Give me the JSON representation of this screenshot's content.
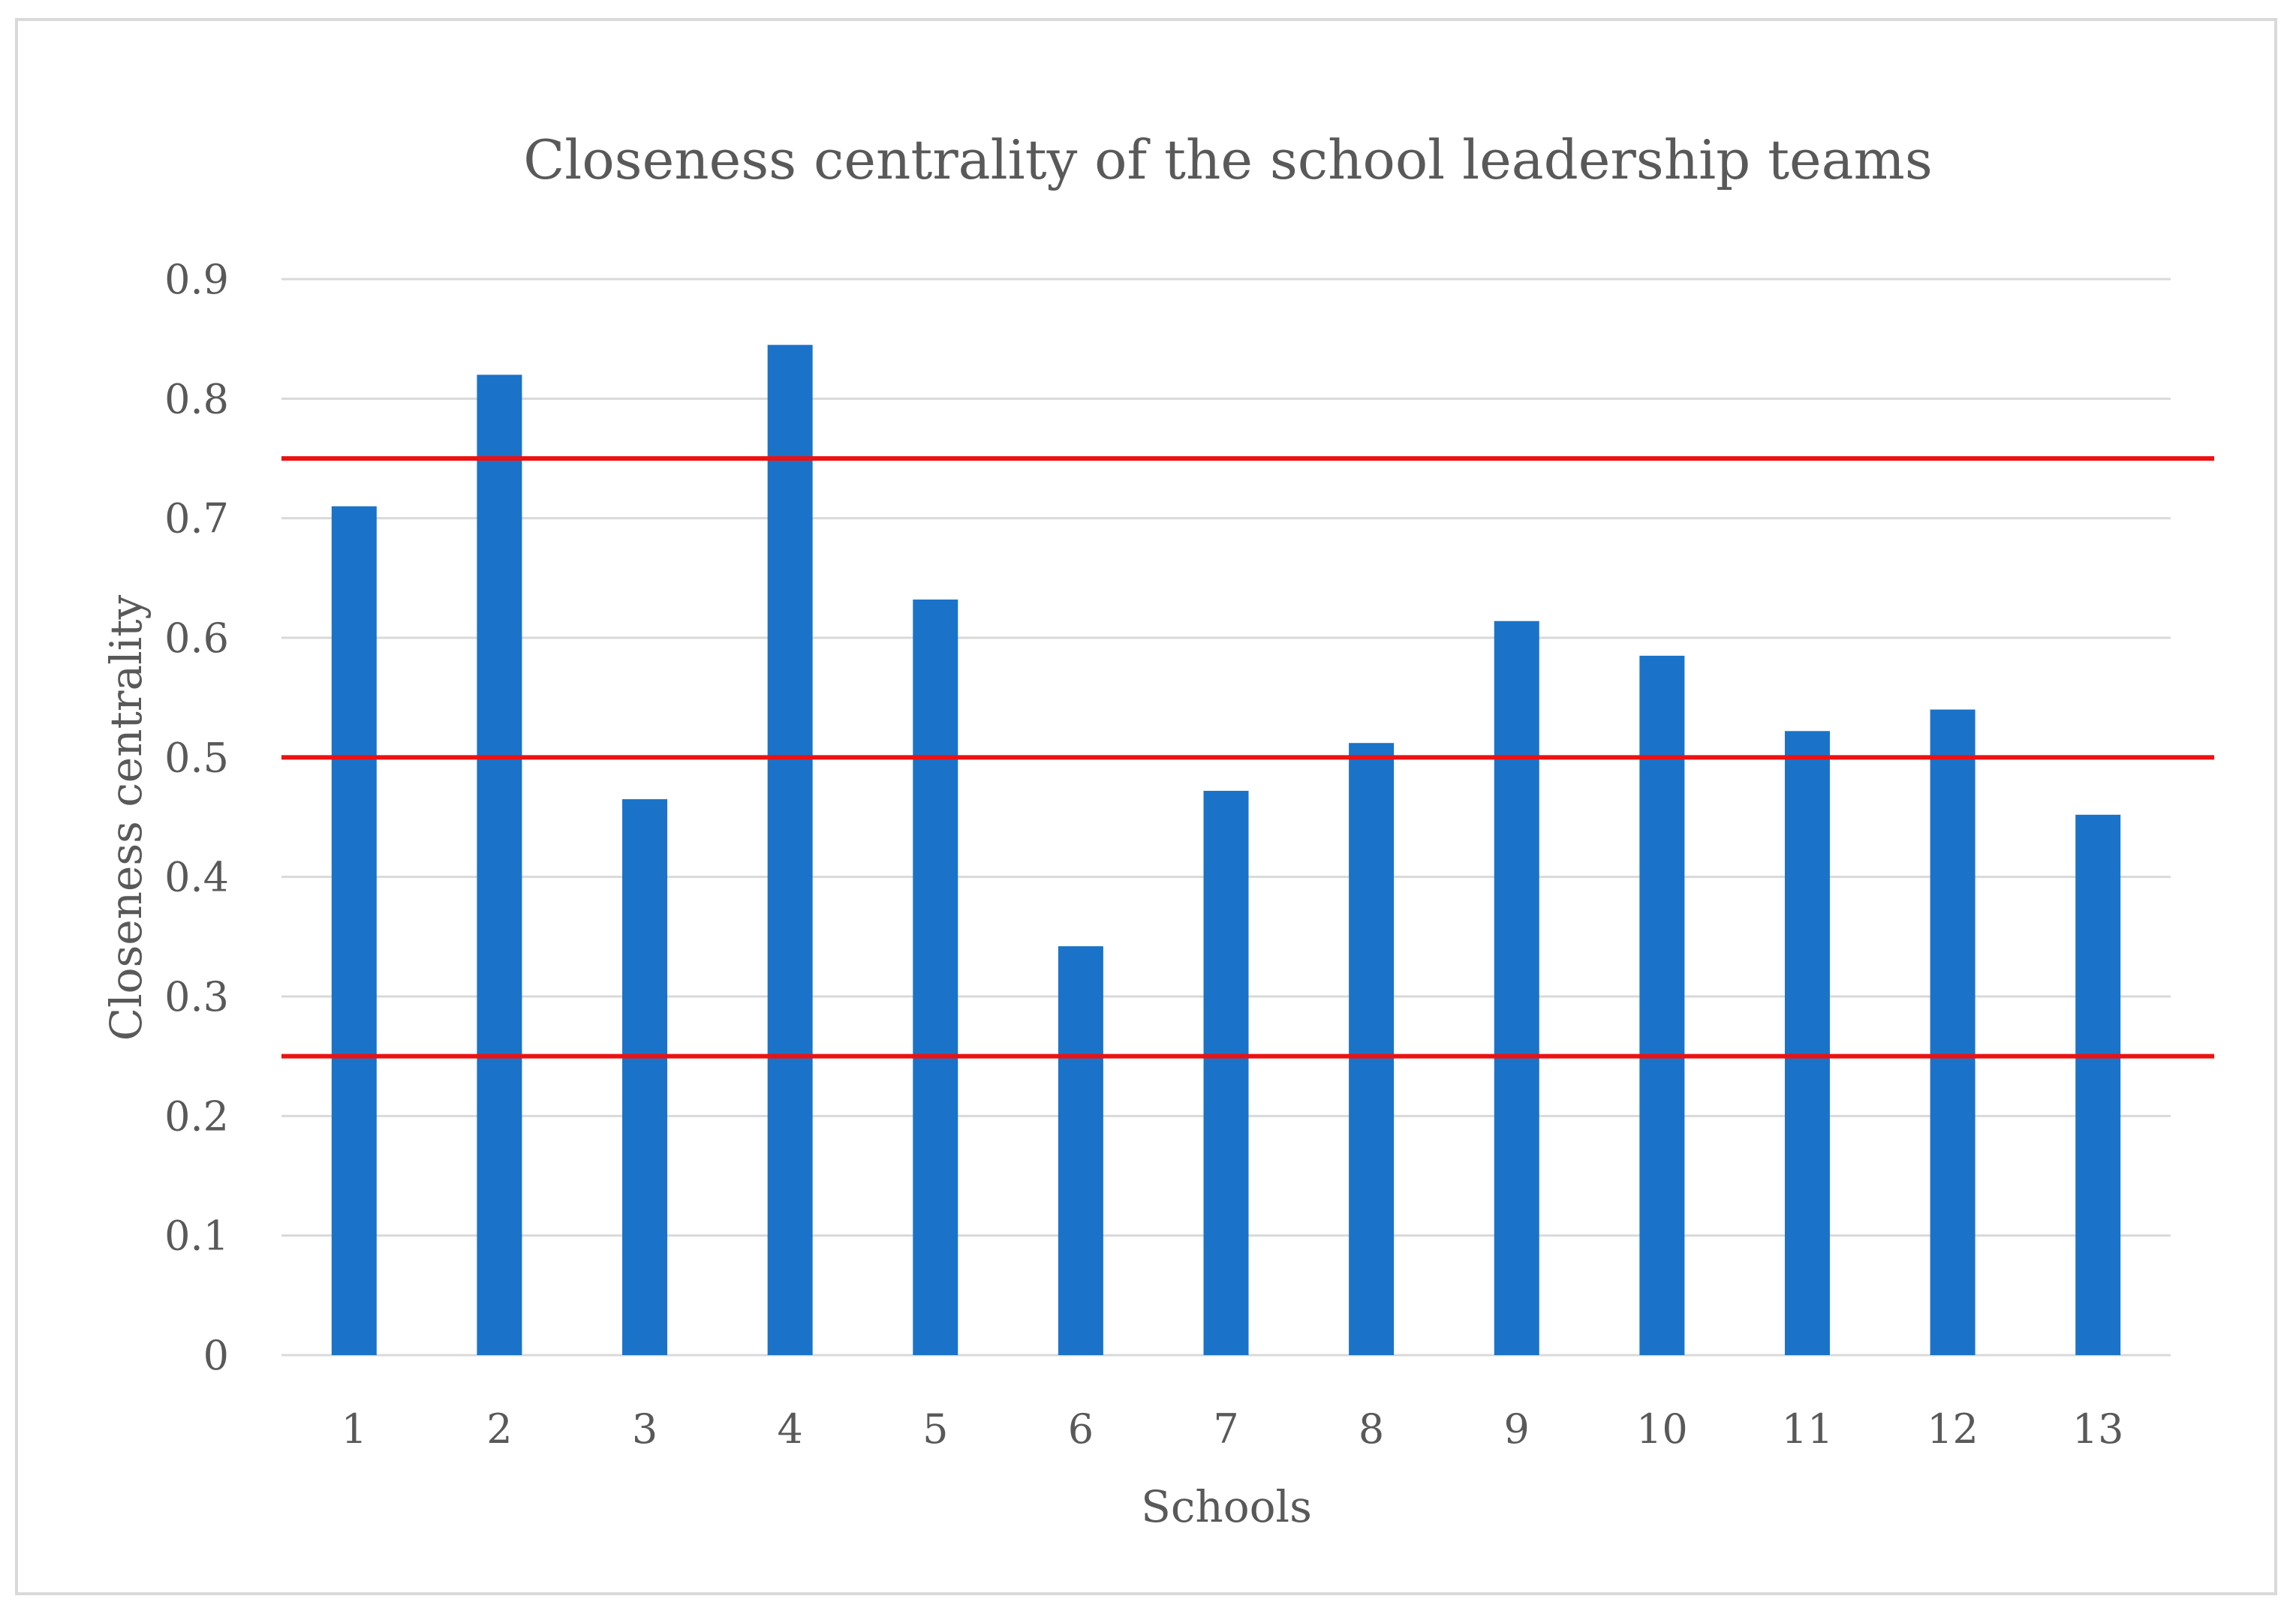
{
  "chart_data": {
    "type": "bar",
    "title": "Closeness centrality of the  school leadership teams",
    "xlabel": "Schools",
    "ylabel": "Closeness  centrality",
    "categories": [
      "1",
      "2",
      "3",
      "4",
      "5",
      "6",
      "7",
      "8",
      "9",
      "10",
      "11",
      "12",
      "13"
    ],
    "values": [
      0.71,
      0.82,
      0.465,
      0.845,
      0.632,
      0.342,
      0.472,
      0.512,
      0.614,
      0.585,
      0.522,
      0.54,
      0.452
    ],
    "ylim": [
      0,
      0.9
    ],
    "yticks": [
      "0",
      "0.1",
      "0.2",
      "0.3",
      "0.4",
      "0.5",
      "0.6",
      "0.7",
      "0.8",
      "0.9"
    ],
    "reference_lines": [
      0.25,
      0.5,
      0.75
    ],
    "grid": true,
    "legend": "none",
    "colors": {
      "bar": "#1a73c9",
      "reference_line": "#ee1111",
      "grid": "#d9d9d9",
      "text": "#595959"
    }
  }
}
